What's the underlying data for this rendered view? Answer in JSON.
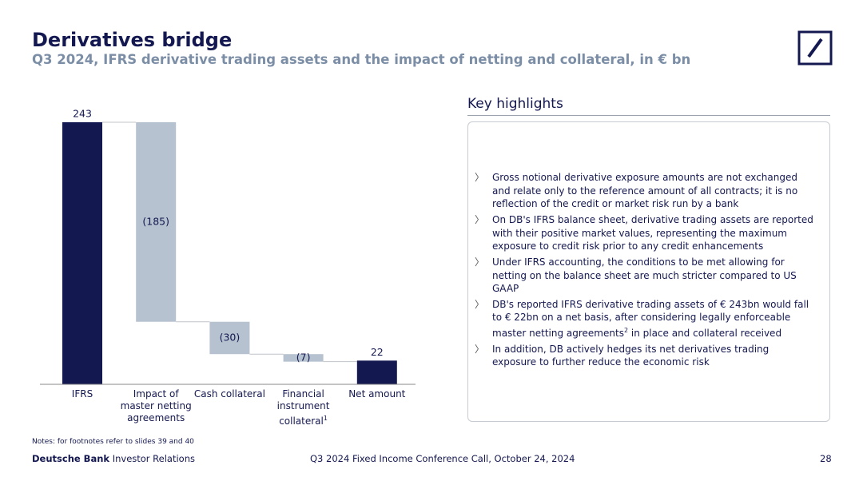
{
  "header": {
    "title": "Derivatives bridge",
    "subtitle": "Q3 2024, IFRS derivative trading assets and the impact of netting and collateral, in € bn"
  },
  "chart_data": {
    "type": "waterfall",
    "categories": [
      "IFRS",
      "Impact of master netting agreements",
      "Cash collateral",
      "Financial instrument collateral",
      "Net amount"
    ],
    "category_superscripts": [
      null,
      null,
      null,
      "1",
      null
    ],
    "values": [
      243,
      -185,
      -30,
      -7,
      22
    ],
    "value_labels": [
      "243",
      "(185)",
      "(30)",
      "(7)",
      "22"
    ],
    "totals": [
      true,
      false,
      false,
      false,
      true
    ],
    "total_color": "#141850",
    "change_color": "#b6c2cf"
  },
  "highlights": {
    "title": "Key highlights",
    "items": [
      {
        "text": "Gross notional derivative exposure amounts are not exchanged and relate only to the reference amount of all contracts; it is no reflection of the credit or market risk run by a bank"
      },
      {
        "text": "On DB's IFRS balance sheet, derivative trading assets are reported with their positive market values, representing the maximum exposure to credit risk prior to any credit enhancements"
      },
      {
        "text": "Under IFRS accounting, the conditions to be met allowing for netting on the balance sheet are much stricter compared to US GAAP"
      },
      {
        "text": "DB's reported IFRS derivative trading assets of € 243bn would fall to € 22bn on a net basis, after considering legally enforceable master netting agreements",
        "sup": "2",
        "text_after": " in place and collateral received"
      },
      {
        "text": "In addition, DB actively hedges its net derivatives trading exposure to further reduce the economic risk"
      }
    ]
  },
  "footer": {
    "notes": "Notes: for footnotes refer to slides 39 and 40",
    "brand": "Deutsche Bank",
    "brand_sub": "Investor Relations",
    "event": "Q3 2024 Fixed Income Conference Call, October 24, 2024",
    "page": "28"
  }
}
